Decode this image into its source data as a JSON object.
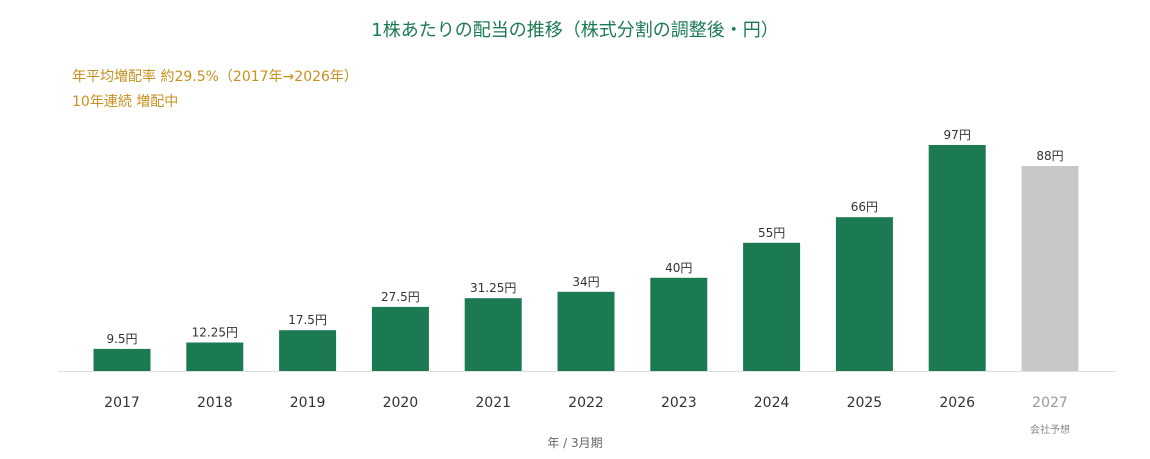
{
  "chart_data": {
    "type": "bar",
    "title": "1株あたりの配当の推移（株式分割の調整後・円）",
    "notes": [
      "年平均増配率 約29.5%（2017年→2026年）",
      "10年連続 増配中"
    ],
    "xlabel": "年 / 3月期",
    "ylabel": "",
    "categories": [
      "2017",
      "2018",
      "2019",
      "2020",
      "2021",
      "2022",
      "2023",
      "2024",
      "2025",
      "2026",
      "2027"
    ],
    "values": [
      9.5,
      12.25,
      17.5,
      27.5,
      31.25,
      34,
      40,
      55,
      66,
      97,
      88
    ],
    "value_labels": [
      "9.5円",
      "12.25円",
      "17.5円",
      "27.5円",
      "31.25円",
      "34円",
      "40円",
      "55円",
      "66円",
      "97円",
      "88円"
    ],
    "forecast_flags": [
      false,
      false,
      false,
      false,
      false,
      false,
      false,
      false,
      false,
      false,
      true
    ],
    "forecast_note": "会社予想",
    "ylim": [
      0,
      100
    ],
    "grid": false,
    "legend": "none",
    "colors": {
      "actual": "#1b7a52",
      "forecast": "#c8c8c8",
      "title": "#1b7a52",
      "notes": "#c8901e",
      "axis": "#e0e0e0"
    }
  }
}
